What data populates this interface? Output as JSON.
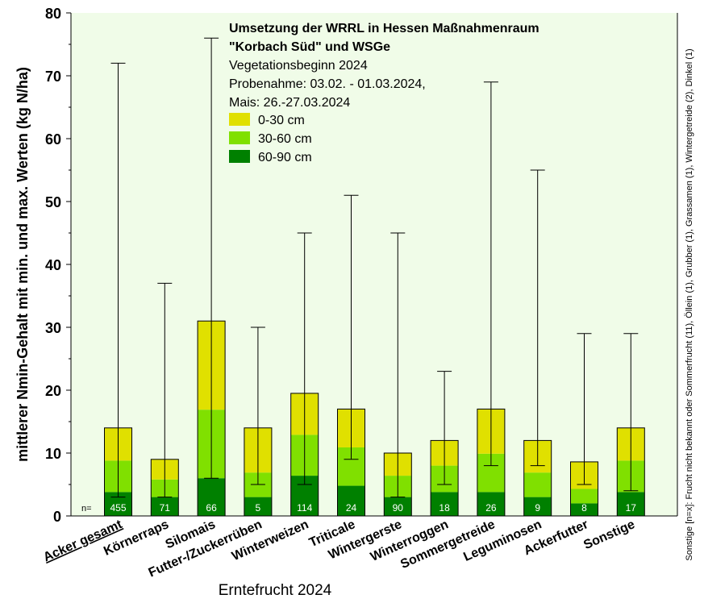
{
  "chart_data": {
    "type": "bar",
    "stacked": true,
    "title_lines": [
      "Umsetzung der WRRL in Hessen Maßnahmenraum",
      "\"Korbach Süd\" und WSGe",
      "Vegetationsbeginn 2024",
      "Probenahme: 03.02. - 01.03.2024,",
      "Mais: 26.-27.03.2024"
    ],
    "xlabel": "Erntefrucht 2024",
    "ylabel": "mittlerer Nmin-Gehalt mit min. und max. Werten (kg N/ha)",
    "ylim": [
      0,
      80
    ],
    "yticks": [
      0,
      10,
      20,
      30,
      40,
      50,
      60,
      70,
      80
    ],
    "grid": false,
    "legend_position": "top-center",
    "n_label": "n=",
    "side_note": "Sonstige [n=x]: Frucht nicht bekannt oder Sommerfrucht (11), Öllein (1), Grubber (1), Grassamen (1), Wintergetreide (2), Dinkel (1)",
    "categories": [
      "Acker gesamt",
      "Körnerraps",
      "Silomais",
      "Futter-/Zuckerrüben",
      "Winterweizen",
      "Triticale",
      "Wintergerste",
      "Winterroggen",
      "Sommergetreide",
      "Leguminosen",
      "Ackerfutter",
      "Sonstige"
    ],
    "underlined_category": "Acker gesamt",
    "series": [
      {
        "name": "60-90 cm",
        "color": "#008000",
        "values": [
          3.8,
          3,
          6,
          3,
          6.4,
          4.8,
          3,
          3.8,
          3.8,
          3,
          2,
          3.8
        ]
      },
      {
        "name": "30-60 cm",
        "color": "#80e000",
        "values": [
          5,
          2.8,
          10.9,
          3.9,
          6.5,
          6.1,
          3.4,
          4.2,
          6.1,
          3.9,
          2.3,
          5
        ]
      },
      {
        "name": "0-30 cm",
        "color": "#e0e000",
        "values": [
          5.2,
          3.2,
          14.1,
          7.1,
          6.6,
          6.1,
          3.6,
          4,
          7.1,
          5.1,
          4.3,
          5.2
        ]
      }
    ],
    "legend_order": [
      "0-30 cm",
      "30-60 cm",
      "60-90 cm"
    ],
    "min": [
      3,
      3,
      6,
      5,
      5,
      9,
      3,
      5,
      8,
      8,
      5,
      4
    ],
    "max": [
      72,
      37,
      76,
      30,
      45,
      51,
      45,
      23,
      69,
      55,
      29,
      29
    ],
    "n": [
      "455",
      "71",
      "66",
      "5",
      "114",
      "24",
      "90",
      "18",
      "26",
      "9",
      "8",
      "17"
    ],
    "colors": {
      "plot_background": "#f0fce8",
      "whisker": "#000000",
      "n_text": "#ffffff"
    }
  }
}
